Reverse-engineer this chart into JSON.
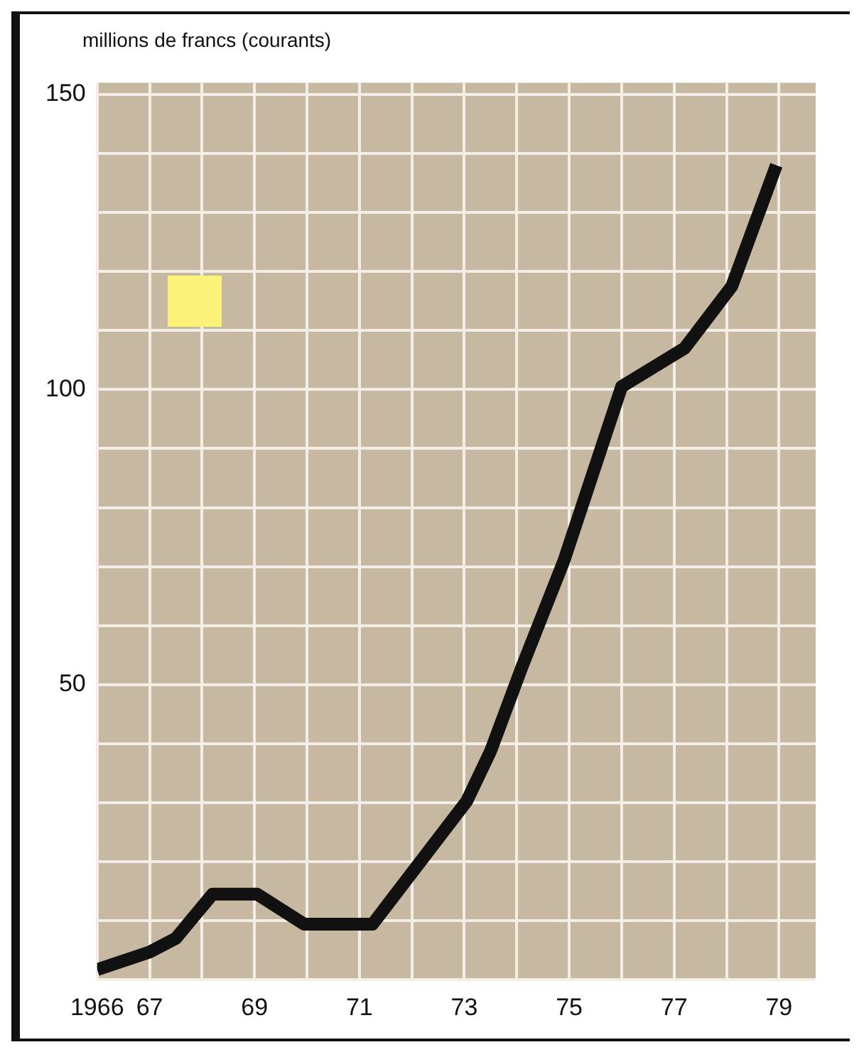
{
  "chart_data": {
    "type": "line",
    "ylabel": "millions de francs (courants)",
    "x": [
      1966,
      1967,
      1967.5,
      1968.2,
      1969.05,
      1969.95,
      1971.25,
      1973.05,
      1973.5,
      1974.1,
      1974.9,
      1976.0,
      1977.2,
      1978.1,
      1978.95
    ],
    "series": [
      {
        "color": "#111111",
        "values": [
          1.7,
          4.7,
          7,
          14.5,
          14.5,
          9.4,
          9.4,
          30.3,
          38.7,
          53,
          71,
          100.5,
          107,
          117.5,
          138
        ]
      }
    ],
    "xlim": [
      1966,
      1979.7
    ],
    "xticks": [
      {
        "value": 1966,
        "label": "1966"
      },
      {
        "value": 1967,
        "label": "67"
      },
      {
        "value": 1968,
        "label": null
      },
      {
        "value": 1969,
        "label": "69"
      },
      {
        "value": 1970,
        "label": null
      },
      {
        "value": 1971,
        "label": "71"
      },
      {
        "value": 1972,
        "label": null
      },
      {
        "value": 1973,
        "label": "73"
      },
      {
        "value": 1974,
        "label": null
      },
      {
        "value": 1975,
        "label": "75"
      },
      {
        "value": 1976,
        "label": null
      },
      {
        "value": 1977,
        "label": "77"
      },
      {
        "value": 1978,
        "label": null
      },
      {
        "value": 1979,
        "label": "79"
      }
    ],
    "ylim": [
      0,
      152
    ],
    "yticks": [
      {
        "value": 0,
        "label": null
      },
      {
        "value": 10,
        "label": null
      },
      {
        "value": 20,
        "label": null
      },
      {
        "value": 30,
        "label": null
      },
      {
        "value": 40,
        "label": null
      },
      50,
      {
        "value": 60,
        "label": null
      },
      {
        "value": 70,
        "label": null
      },
      {
        "value": 80,
        "label": null
      },
      {
        "value": 90,
        "label": null
      },
      100,
      {
        "value": 110,
        "label": null
      },
      {
        "value": 120,
        "label": null
      },
      {
        "value": 130,
        "label": null
      },
      {
        "value": 140,
        "label": null
      },
      150
    ],
    "grid": true,
    "marker": "none",
    "line_style": "solid",
    "legend": false
  }
}
